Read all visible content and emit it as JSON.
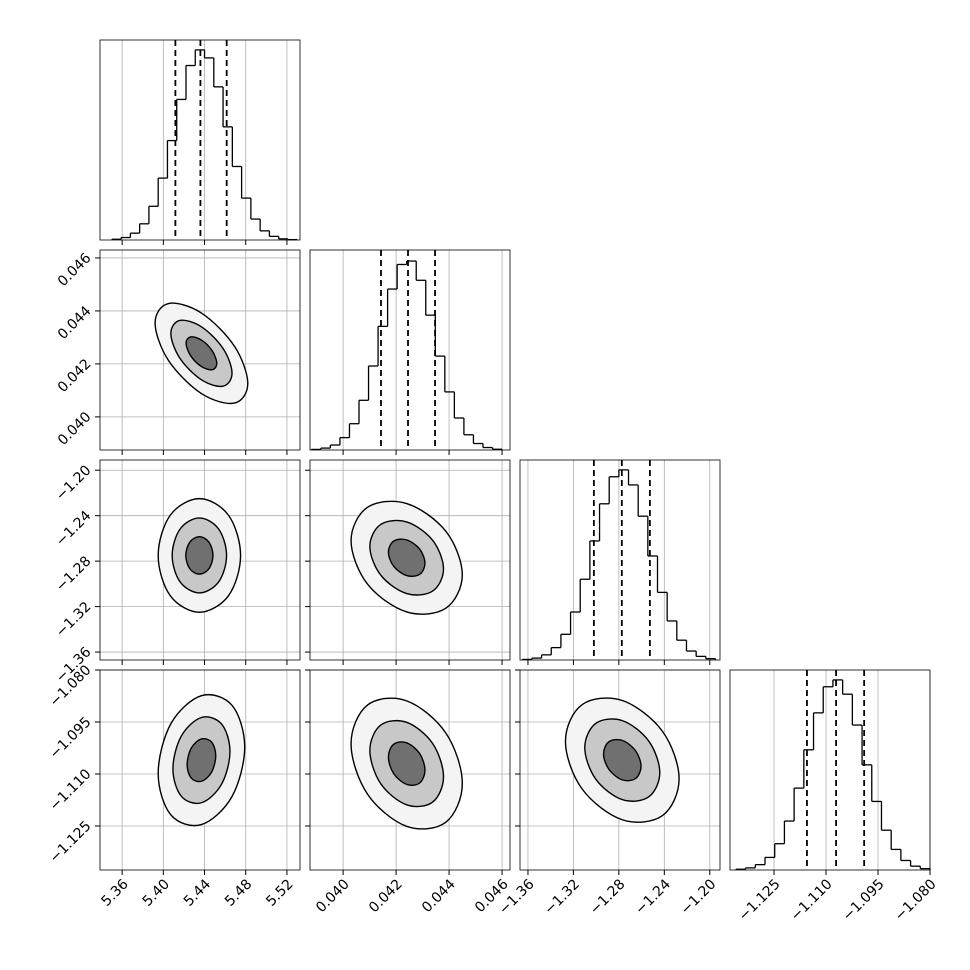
{
  "chart_data": {
    "type": "corner",
    "color": "#000000",
    "grid_color": "#b0b0b0",
    "contour_fills": [
      "#f4f4f4",
      "#c8c8c8",
      "#707070"
    ],
    "grid": true,
    "parameters": [
      {
        "xlim": [
          5.3385,
          5.5327
        ],
        "xticks": [
          5.36,
          {
            "value": 5.4,
            "label": "5.40"
          },
          5.44,
          5.48,
          5.52
        ],
        "quantiles": [
          5.4117,
          5.436,
          5.4615
        ],
        "hist": {
          "ylim": [
            0,
            1050
          ],
          "bins": [
            5.35,
            5.359,
            5.368,
            5.377,
            5.386,
            5.395,
            5.404,
            5.413,
            5.422,
            5.431,
            5.44,
            5.449,
            5.458,
            5.467,
            5.476,
            5.485,
            5.494,
            5.503,
            5.512,
            5.521,
            5.53
          ],
          "counts": [
            4,
            13,
            36,
            85,
            177,
            325,
            522,
            738,
            916,
            998,
            956,
            804,
            594,
            386,
            220,
            110,
            48,
            19,
            6,
            2
          ]
        }
      },
      {
        "xlim": [
          0.03875,
          0.0463
        ],
        "xticks": [
          {
            "value": 0.04,
            "label": "0.040"
          },
          0.042,
          0.044,
          0.046
        ],
        "quantiles": [
          0.04143,
          0.04245,
          0.04347
        ],
        "hist": {
          "ylim": [
            0,
            1050
          ],
          "bins": [
            0.0388,
            0.03916,
            0.03952,
            0.03988,
            0.04024,
            0.0406,
            0.04096,
            0.04132,
            0.04168,
            0.04204,
            0.0424,
            0.04276,
            0.04312,
            0.04348,
            0.04384,
            0.0442,
            0.04456,
            0.04492,
            0.04528,
            0.04564,
            0.046
          ],
          "counts": [
            3,
            10,
            26,
            65,
            138,
            261,
            441,
            649,
            845,
            974,
            992,
            891,
            708,
            493,
            305,
            168,
            80,
            34,
            13,
            4
          ]
        }
      },
      {
        "xlim": [
          -1.367,
          -1.191
        ],
        "xticks": [
          {
            "value": -1.36,
            "label": "−1.36"
          },
          {
            "value": -1.32,
            "label": "−1.32"
          },
          {
            "value": -1.28,
            "label": "−1.28"
          },
          {
            "value": -1.24,
            "label": "−1.24"
          },
          {
            "value": -1.2,
            "label": "−1.20"
          }
        ],
        "quantiles": [
          -1.302,
          -1.2774,
          -1.2527
        ],
        "hist": {
          "ylim": [
            0,
            1050
          ],
          "bins": [
            -1.365,
            -1.3565,
            -1.348,
            -1.3395,
            -1.331,
            -1.3225,
            -1.314,
            -1.3055,
            -1.297,
            -1.2885,
            -1.28,
            -1.2715,
            -1.263,
            -1.2545,
            -1.246,
            -1.2375,
            -1.229,
            -1.2205,
            -1.212,
            -1.2035,
            -1.195
          ],
          "counts": [
            3,
            10,
            27,
            65,
            135,
            252,
            424,
            625,
            820,
            962,
            998,
            919,
            755,
            546,
            355,
            205,
            104,
            47,
            19,
            7
          ]
        }
      },
      {
        "xlim": [
          -1.1377,
          -1.08
        ],
        "xticks": [
          {
            "value": -1.125,
            "label": "−1.125"
          },
          {
            "value": -1.11,
            "label": "−1.110"
          },
          {
            "value": -1.095,
            "label": "−1.095"
          },
          {
            "value": -1.08,
            "label": "−1.080"
          }
        ],
        "quantiles": [
          -1.1155,
          -1.1071,
          -1.099
        ],
        "hist": {
          "ylim": [
            0,
            1050
          ],
          "bins": [
            -1.136,
            -1.1332,
            -1.1304,
            -1.1276,
            -1.1248,
            -1.122,
            -1.1192,
            -1.1164,
            -1.1136,
            -1.1108,
            -1.108,
            -1.1052,
            -1.1024,
            -1.0996,
            -1.0968,
            -1.094,
            -1.0912,
            -1.0884,
            -1.0856,
            -1.0828,
            -1.08
          ],
          "counts": [
            4,
            11,
            28,
            66,
            138,
            257,
            430,
            631,
            825,
            962,
            998,
            923,
            761,
            552,
            360,
            209,
            108,
            50,
            20,
            7
          ]
        }
      }
    ],
    "rows": [
      [],
      [
        {
          "contours": [
            {
              "x": [
                5.482,
                5.469,
                5.437,
                5.405,
                5.392,
                5.405,
                5.437,
                5.469
              ],
              "y": [
                0.04126,
                0.04267,
                0.04392,
                0.04428,
                0.04354,
                0.04213,
                0.04088,
                0.04052
              ]
            },
            {
              "x": [
                5.4667,
                5.458,
                5.437,
                5.416,
                5.4073,
                5.416,
                5.437,
                5.458
              ],
              "y": [
                0.04165,
                0.04258,
                0.0434,
                0.04364,
                0.04315,
                0.04222,
                0.0414,
                0.04116
              ]
            },
            {
              "x": [
                5.4519,
                5.4475,
                5.437,
                5.4265,
                5.4221,
                5.4265,
                5.437,
                5.4475
              ],
              "y": [
                0.04202,
                0.04249,
                0.0429,
                0.04302,
                0.04278,
                0.04231,
                0.0419,
                0.04178
              ]
            }
          ]
        }
      ],
      [
        {
          "contours": [
            {
              "x": [
                5.475,
                5.4633,
                5.435,
                5.4067,
                5.395,
                5.4067,
                5.435,
                5.4633
              ],
              "y": [
                -1.275,
                -1.2396,
                -1.225,
                -1.2396,
                -1.275,
                -1.3104,
                -1.325,
                -1.3104
              ]
            },
            {
              "x": [
                5.4614,
                5.4537,
                5.435,
                5.4163,
                5.4086,
                5.4163,
                5.435,
                5.4537
              ],
              "y": [
                -1.275,
                -1.2517,
                -1.242,
                -1.2517,
                -1.275,
                -1.2983,
                -1.308,
                -1.2983
              ]
            },
            {
              "x": [
                5.4482,
                5.4443,
                5.435,
                5.4257,
                5.4218,
                5.4257,
                5.435,
                5.4443
              ],
              "y": [
                -1.275,
                -1.2633,
                -1.2585,
                -1.2633,
                -1.275,
                -1.2867,
                -1.2915,
                -1.2867
              ]
            }
          ]
        },
        {
          "contours": [
            {
              "x": [
                0.0445,
                0.04388,
                0.0424,
                0.04092,
                0.0403,
                0.04092,
                0.0424,
                0.04388
              ],
              "y": [
                -1.292,
                -1.2538,
                -1.2293,
                -1.2326,
                -1.262,
                -1.3002,
                -1.3247,
                -1.3214
              ]
            },
            {
              "x": [
                0.04379,
                0.04338,
                0.0424,
                0.04142,
                0.04101,
                0.04142,
                0.0424,
                0.04338
              ],
              "y": [
                -1.2869,
                -1.2617,
                -1.2455,
                -1.2477,
                -1.2671,
                -1.2923,
                -1.3085,
                -1.3063
              ]
            },
            {
              "x": [
                0.04309,
                0.04289,
                0.0424,
                0.04191,
                0.04171,
                0.04191,
                0.0424,
                0.04289
              ],
              "y": [
                -1.282,
                -1.2694,
                -1.2613,
                -1.2624,
                -1.272,
                -1.2846,
                -1.2927,
                -1.2916
              ]
            }
          ]
        }
      ],
      [
        {
          "contours": [
            {
              "x": [
                5.479,
                5.4667,
                5.437,
                5.4073,
                5.395,
                5.4073,
                5.437,
                5.4667
              ],
              "y": [
                -1.1022,
                -1.0902,
                -1.0874,
                -1.0955,
                -1.1098,
                -1.1218,
                -1.1246,
                -1.1165
              ]
            },
            {
              "x": [
                5.4647,
                5.4566,
                5.437,
                5.4174,
                5.4093,
                5.4174,
                5.437,
                5.4566
              ],
              "y": [
                -1.1035,
                -1.0956,
                -1.0937,
                -1.0991,
                -1.1085,
                -1.1164,
                -1.1183,
                -1.1129
              ]
            },
            {
              "x": [
                5.4509,
                5.4468,
                5.437,
                5.4272,
                5.4231,
                5.4272,
                5.437,
                5.4468
              ],
              "y": [
                -1.1047,
                -1.1008,
                -1.0999,
                -1.1025,
                -1.1073,
                -1.1112,
                -1.1121,
                -1.1095
              ]
            }
          ]
        },
        {
          "contours": [
            {
              "x": [
                0.0445,
                0.04388,
                0.0424,
                0.04092,
                0.0403,
                0.04092,
                0.0424,
                0.04388
              ],
              "y": [
                -1.1127,
                -1.0982,
                -1.0889,
                -1.0901,
                -1.1013,
                -1.1158,
                -1.1251,
                -1.1239
              ]
            },
            {
              "x": [
                0.04379,
                0.04338,
                0.0424,
                0.04142,
                0.04101,
                0.04142,
                0.0424,
                0.04338
              ],
              "y": [
                -1.1108,
                -1.1012,
                -1.0951,
                -1.0959,
                -1.1032,
                -1.1128,
                -1.1189,
                -1.1181
              ]
            },
            {
              "x": [
                0.04309,
                0.04289,
                0.0424,
                0.04191,
                0.04171,
                0.04191,
                0.0424,
                0.04289
              ],
              "y": [
                -1.1089,
                -1.1041,
                -1.101,
                -1.1014,
                -1.1051,
                -1.1099,
                -1.113,
                -1.1126
              ]
            }
          ]
        },
        {
          "contours": [
            {
              "x": [
                -1.227,
                -1.2416,
                -1.277,
                -1.3124,
                -1.327,
                -1.3124,
                -1.277,
                -1.2416
              ],
              "y": [
                -1.1114,
                -1.0977,
                -1.0888,
                -1.09,
                -1.1006,
                -1.1143,
                -1.1232,
                -1.122
              ]
            },
            {
              "x": [
                -1.244,
                -1.2537,
                -1.277,
                -1.3003,
                -1.31,
                -1.3003,
                -1.277,
                -1.2537
              ],
              "y": [
                -1.1096,
                -1.1005,
                -1.0946,
                -1.0954,
                -1.1024,
                -1.1115,
                -1.1174,
                -1.1166
              ]
            },
            {
              "x": [
                -1.2605,
                -1.2653,
                -1.277,
                -1.2887,
                -1.2935,
                -1.2887,
                -1.277,
                -1.2653
              ],
              "y": [
                -1.1078,
                -1.1033,
                -1.1003,
                -1.1007,
                -1.1042,
                -1.1087,
                -1.1117,
                -1.1113
              ]
            }
          ]
        }
      ]
    ]
  }
}
